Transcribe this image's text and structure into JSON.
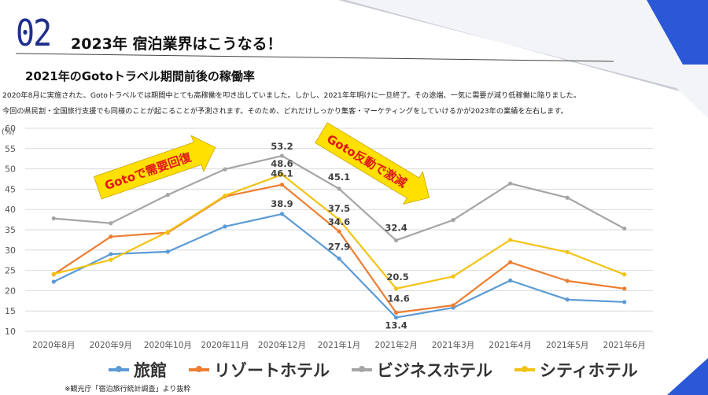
{
  "header": {
    "section_number": "02",
    "title": "2023年 宿泊業界はこうなる！"
  },
  "subtitle": "2021年のGotoトラベル期間前後の稼働率",
  "description": [
    "2020年8月に実施された、Gotoトラベルでは期間中とても高稼働を叩き出していました。しかし、2021年年明けに一旦終了。その途端、一気に需要が減り低稼働に陥りました。",
    "今回の県民割・全国旅行支援でも同様のことが起こることが予測されます。そのため、どれだけしっかり集客・マーケティングをしていけるかが2023年の業績を左右します。"
  ],
  "callouts": {
    "recovery": "Gotoで需要回復",
    "crash": "Goto反動で激減"
  },
  "source_note": "※観光庁「宿泊旅行統計調査」より抜粋",
  "colors": {
    "accent_blue": "#2a58d6",
    "arrow_yellow": "#ffe000",
    "arrow_text": "#e0161b"
  },
  "chart_data": {
    "type": "line",
    "title": "2021年のGotoトラベル期間前後の稼働率",
    "ylabel": "(%)",
    "xlabel": "",
    "ylim": [
      10,
      60
    ],
    "yticks": [
      10,
      15,
      20,
      25,
      30,
      35,
      40,
      45,
      50,
      55,
      60
    ],
    "grid": true,
    "legend_position": "bottom",
    "categories": [
      "2020年8月",
      "2020年9月",
      "2020年10月",
      "2020年11月",
      "2020年12月",
      "2021年1月",
      "2021年2月",
      "2021年3月",
      "2021年4月",
      "2021年5月",
      "2021年6月"
    ],
    "series": [
      {
        "name": "旅館",
        "color": "#5b9bd5",
        "values": [
          22.2,
          29.0,
          29.6,
          35.8,
          38.9,
          27.9,
          13.4,
          15.8,
          22.5,
          17.8,
          17.2
        ]
      },
      {
        "name": "リゾートホテル",
        "color": "#ed7d31",
        "values": [
          24.0,
          33.3,
          34.3,
          43.2,
          46.1,
          34.6,
          14.6,
          16.4,
          27.0,
          22.4,
          20.5
        ]
      },
      {
        "name": "ビジネスホテル",
        "color": "#a5a5a5",
        "values": [
          37.8,
          36.6,
          43.6,
          49.9,
          53.2,
          45.1,
          32.4,
          37.4,
          46.4,
          42.9,
          35.3
        ]
      },
      {
        "name": "シティホテル",
        "color": "#f2c314",
        "values": [
          24.1,
          27.6,
          34.5,
          43.4,
          48.6,
          37.5,
          20.5,
          23.5,
          32.5,
          29.5,
          24.0
        ]
      }
    ],
    "data_labels": [
      {
        "series": 2,
        "index": 4,
        "text": "53.2"
      },
      {
        "series": 3,
        "index": 4,
        "text": "48.6"
      },
      {
        "series": 1,
        "index": 4,
        "text": "46.1"
      },
      {
        "series": 0,
        "index": 4,
        "text": "38.9"
      },
      {
        "series": 2,
        "index": 5,
        "text": "45.1"
      },
      {
        "series": 3,
        "index": 5,
        "text": "37.5"
      },
      {
        "series": 1,
        "index": 5,
        "text": "34.6"
      },
      {
        "series": 0,
        "index": 5,
        "text": "27.9"
      },
      {
        "series": 2,
        "index": 6,
        "text": "32.4"
      },
      {
        "series": 3,
        "index": 6,
        "text": "20.5"
      },
      {
        "series": 1,
        "index": 6,
        "text": "14.6"
      },
      {
        "series": 0,
        "index": 6,
        "text": "13.4"
      }
    ]
  }
}
